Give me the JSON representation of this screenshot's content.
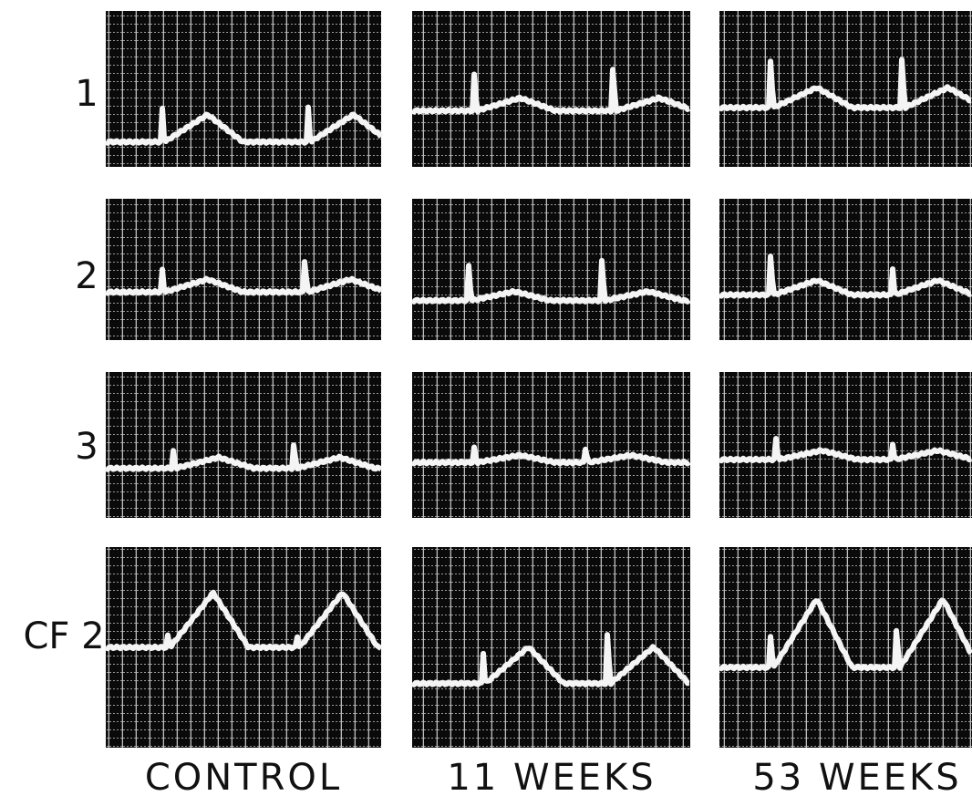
{
  "row_labels": [
    "1",
    "2",
    "3",
    "CF 2"
  ],
  "column_labels": [
    "CONTROL",
    "11 WEEKS",
    "53 WEEKS"
  ]
}
